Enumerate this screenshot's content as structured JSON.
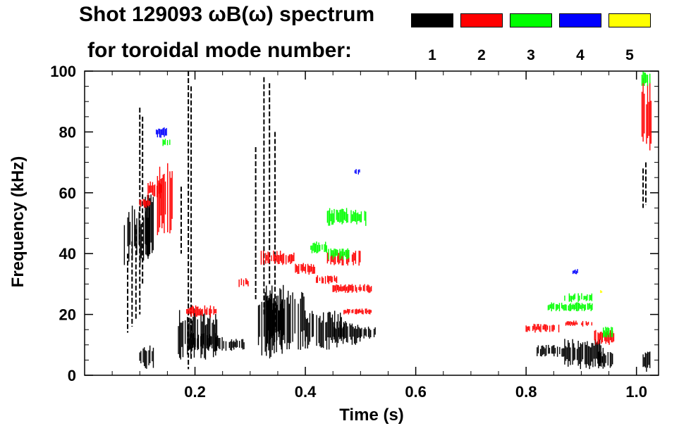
{
  "chart_data": {
    "type": "heatmap",
    "title_line1": "Shot 129093 ωB(ω) spectrum",
    "title_line2": "for toroidal mode number:",
    "xlabel": "Time (s)",
    "ylabel": "Frequency (kHz)",
    "xlim": [
      0.0,
      1.04
    ],
    "ylim": [
      0,
      100
    ],
    "x_ticks": [
      0.2,
      0.4,
      0.6,
      0.8,
      1.0
    ],
    "x_tick_labels": [
      "0.2",
      "0.4",
      "0.6",
      "0.8",
      "1.0"
    ],
    "y_ticks": [
      0,
      20,
      40,
      60,
      80,
      100
    ],
    "y_tick_labels": [
      "0",
      "20",
      "40",
      "60",
      "80",
      "100"
    ],
    "legend": [
      {
        "n": "1",
        "color": "#000000"
      },
      {
        "n": "2",
        "color": "#ff0000"
      },
      {
        "n": "3",
        "color": "#00ff00"
      },
      {
        "n": "4",
        "color": "#0000ff"
      },
      {
        "n": "5",
        "color": "#ffff00"
      }
    ],
    "series": [
      {
        "name": "n=1",
        "mode": 1,
        "blobs": [
          [
            0.07,
            0.12,
            36,
            56
          ],
          [
            0.11,
            0.125,
            38,
            60
          ],
          [
            0.1,
            0.125,
            2,
            10
          ],
          [
            0.17,
            0.24,
            5,
            22
          ],
          [
            0.19,
            0.25,
            8,
            14
          ],
          [
            0.25,
            0.29,
            8,
            12
          ],
          [
            0.315,
            0.36,
            5,
            30
          ],
          [
            0.33,
            0.4,
            8,
            28
          ],
          [
            0.4,
            0.47,
            8,
            22
          ],
          [
            0.45,
            0.5,
            10,
            18
          ],
          [
            0.5,
            0.53,
            12,
            16
          ],
          [
            0.82,
            0.87,
            6,
            10
          ],
          [
            0.87,
            0.94,
            2,
            12
          ],
          [
            0.93,
            0.96,
            2,
            8
          ],
          [
            1.01,
            1.025,
            1,
            8
          ]
        ],
        "lines": [
          [
            0.1,
            20,
            88
          ],
          [
            0.105,
            30,
            85
          ],
          [
            0.188,
            2,
            100
          ],
          [
            0.193,
            5,
            95
          ],
          [
            0.175,
            40,
            62
          ],
          [
            0.325,
            20,
            98
          ],
          [
            0.335,
            30,
            96
          ],
          [
            0.345,
            15,
            80
          ],
          [
            0.31,
            25,
            75
          ],
          [
            0.078,
            14,
            40
          ],
          [
            0.086,
            16,
            44
          ],
          [
            0.093,
            18,
            48
          ],
          [
            1.012,
            55,
            68
          ],
          [
            1.017,
            56,
            70
          ]
        ]
      },
      {
        "name": "n=2",
        "mode": 2,
        "blobs": [
          [
            0.115,
            0.14,
            58,
            64
          ],
          [
            0.13,
            0.16,
            45,
            70
          ],
          [
            0.1,
            0.12,
            55,
            58
          ],
          [
            0.185,
            0.24,
            19,
            23
          ],
          [
            0.28,
            0.3,
            29,
            32
          ],
          [
            0.32,
            0.38,
            36,
            41
          ],
          [
            0.38,
            0.42,
            33,
            37
          ],
          [
            0.42,
            0.46,
            30,
            33
          ],
          [
            0.44,
            0.5,
            36,
            41
          ],
          [
            0.45,
            0.52,
            27,
            30
          ],
          [
            0.47,
            0.52,
            20,
            22
          ],
          [
            0.8,
            0.86,
            14,
            17
          ],
          [
            0.87,
            0.92,
            16,
            18
          ],
          [
            0.92,
            0.96,
            10,
            15
          ],
          [
            1.01,
            1.028,
            72,
            98
          ]
        ]
      },
      {
        "name": "n=3",
        "mode": 3,
        "blobs": [
          [
            0.44,
            0.51,
            49,
            55
          ],
          [
            0.41,
            0.44,
            40,
            44
          ],
          [
            0.44,
            0.48,
            38,
            42
          ],
          [
            0.84,
            0.92,
            21,
            24
          ],
          [
            0.87,
            0.92,
            24,
            27
          ],
          [
            0.94,
            0.96,
            12,
            16
          ],
          [
            1.01,
            1.025,
            95,
            100
          ],
          [
            0.14,
            0.155,
            75,
            78
          ]
        ]
      },
      {
        "name": "n=4",
        "mode": 4,
        "blobs": [
          [
            0.13,
            0.15,
            78,
            82
          ],
          [
            0.49,
            0.5,
            66,
            68
          ],
          [
            0.885,
            0.895,
            33,
            35
          ]
        ]
      },
      {
        "name": "n=5",
        "mode": 5,
        "blobs": [
          [
            0.935,
            0.94,
            27,
            28
          ]
        ]
      }
    ]
  }
}
